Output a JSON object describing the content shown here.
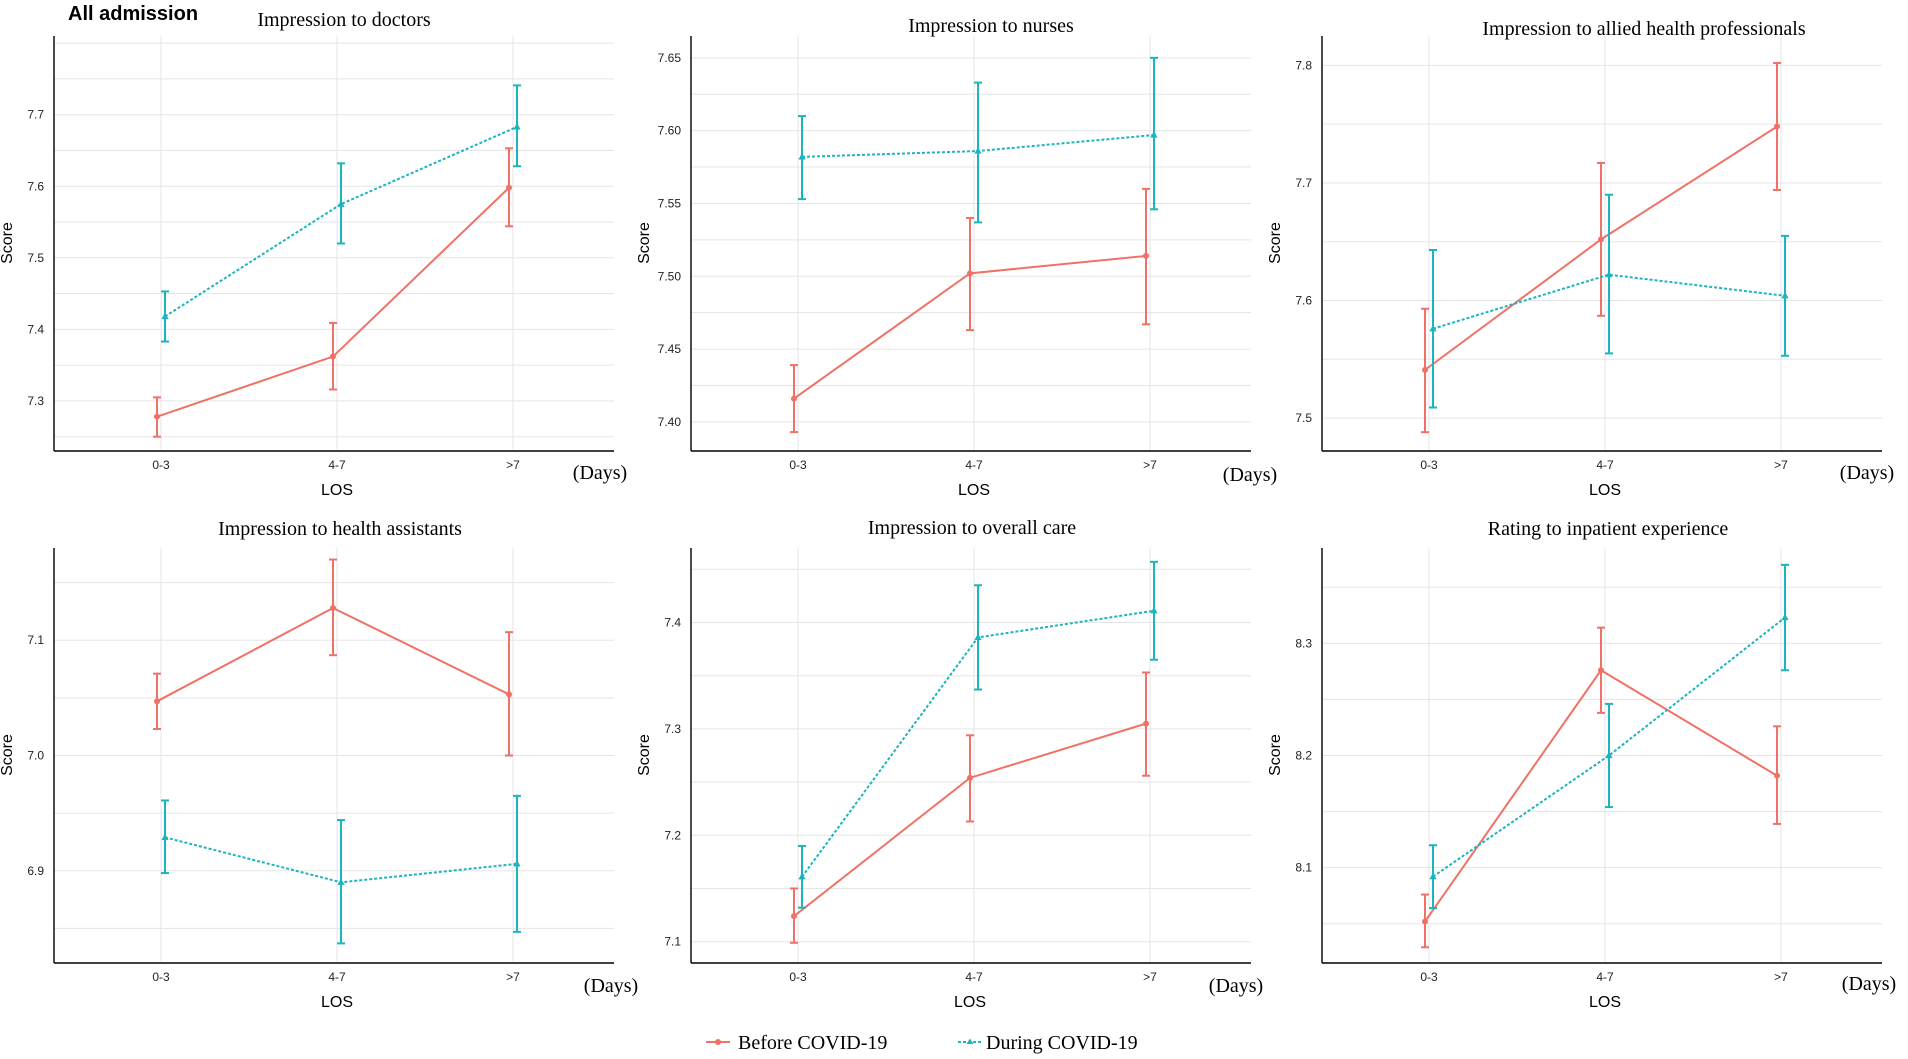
{
  "figure_title": "All admission",
  "legend": {
    "before_label": "Before COVID-19",
    "during_label": "During COVID-19"
  },
  "colors": {
    "before": "#F07166",
    "during": "#1BB5BD",
    "axis": "#000000",
    "grid": "#E5E5E5"
  },
  "chart_data": [
    {
      "type": "line",
      "title": "Impression to doctors",
      "xlabel": "LOS",
      "xunit": "(Days)",
      "ylabel": "Score",
      "categories": [
        "0-3",
        "4-7",
        ">7"
      ],
      "ylim": [
        7.23,
        7.81
      ],
      "yticks": [
        7.3,
        7.4,
        7.5,
        7.6,
        7.7
      ],
      "series": [
        {
          "name": "Before COVID-19",
          "values": [
            7.278,
            7.362,
            7.598
          ],
          "lower": [
            7.25,
            7.316,
            7.544
          ],
          "upper": [
            7.305,
            7.409,
            7.653
          ]
        },
        {
          "name": "During COVID-19",
          "values": [
            7.418,
            7.575,
            7.683
          ],
          "lower": [
            7.383,
            7.52,
            7.628
          ],
          "upper": [
            7.453,
            7.632,
            7.741
          ]
        }
      ]
    },
    {
      "type": "line",
      "title": "Impression to nurses",
      "xlabel": "LOS",
      "xunit": "(Days)",
      "ylabel": "Score",
      "categories": [
        "0-3",
        "4-7",
        ">7"
      ],
      "ylim": [
        7.38,
        7.665
      ],
      "yticks": [
        7.4,
        7.45,
        7.5,
        7.55,
        7.6,
        7.65
      ],
      "series": [
        {
          "name": "Before COVID-19",
          "values": [
            7.416,
            7.502,
            7.514
          ],
          "lower": [
            7.393,
            7.463,
            7.467
          ],
          "upper": [
            7.439,
            7.54,
            7.56
          ]
        },
        {
          "name": "During COVID-19",
          "values": [
            7.582,
            7.586,
            7.597
          ],
          "lower": [
            7.553,
            7.537,
            7.546
          ],
          "upper": [
            7.61,
            7.633,
            7.65
          ]
        }
      ]
    },
    {
      "type": "line",
      "title": "Impression to allied health professionals",
      "xlabel": "LOS",
      "xunit": "(Days)",
      "ylabel": "Score",
      "categories": [
        "0-3",
        "4-7",
        ">7"
      ],
      "ylim": [
        7.472,
        7.825
      ],
      "yticks": [
        7.5,
        7.6,
        7.7,
        7.8
      ],
      "series": [
        {
          "name": "Before COVID-19",
          "values": [
            7.541,
            7.652,
            7.748
          ],
          "lower": [
            7.488,
            7.587,
            7.694
          ],
          "upper": [
            7.593,
            7.717,
            7.802
          ]
        },
        {
          "name": "During COVID-19",
          "values": [
            7.576,
            7.622,
            7.604
          ],
          "lower": [
            7.509,
            7.555,
            7.553
          ],
          "upper": [
            7.643,
            7.69,
            7.655
          ]
        }
      ]
    },
    {
      "type": "line",
      "title": "Impression to health assistants",
      "xlabel": "LOS",
      "xunit": "(Days)",
      "ylabel": "Score",
      "categories": [
        "0-3",
        "4-7",
        ">7"
      ],
      "ylim": [
        6.82,
        7.18
      ],
      "yticks": [
        6.9,
        7.0,
        7.1
      ],
      "series": [
        {
          "name": "Before COVID-19",
          "values": [
            7.047,
            7.128,
            7.053
          ],
          "lower": [
            7.023,
            7.087,
            7.0
          ],
          "upper": [
            7.071,
            7.17,
            7.107
          ]
        },
        {
          "name": "During COVID-19",
          "values": [
            6.929,
            6.89,
            6.906
          ],
          "lower": [
            6.898,
            6.837,
            6.847
          ],
          "upper": [
            6.961,
            6.944,
            6.965
          ]
        }
      ]
    },
    {
      "type": "line",
      "title": "Impression to overall care",
      "xlabel": "LOS",
      "xunit": "(Days)",
      "ylabel": "Score",
      "categories": [
        "0-3",
        "4-7",
        ">7"
      ],
      "ylim": [
        7.08,
        7.47
      ],
      "yticks": [
        7.1,
        7.2,
        7.3,
        7.4
      ],
      "series": [
        {
          "name": "Before COVID-19",
          "values": [
            7.124,
            7.254,
            7.305
          ],
          "lower": [
            7.099,
            7.213,
            7.256
          ],
          "upper": [
            7.15,
            7.294,
            7.353
          ]
        },
        {
          "name": "During COVID-19",
          "values": [
            7.161,
            7.386,
            7.411
          ],
          "lower": [
            7.132,
            7.337,
            7.365
          ],
          "upper": [
            7.19,
            7.435,
            7.457
          ]
        }
      ]
    },
    {
      "type": "line",
      "title": "Rating to inpatient experience",
      "xlabel": "LOS",
      "xunit": "(Days)",
      "ylabel": "Score",
      "categories": [
        "0-3",
        "4-7",
        ">7"
      ],
      "ylim": [
        8.015,
        8.385
      ],
      "yticks": [
        8.1,
        8.2,
        8.3
      ],
      "series": [
        {
          "name": "Before COVID-19",
          "values": [
            8.052,
            8.276,
            8.182
          ],
          "lower": [
            8.029,
            8.238,
            8.139
          ],
          "upper": [
            8.076,
            8.314,
            8.226
          ]
        },
        {
          "name": "During COVID-19",
          "values": [
            8.092,
            8.2,
            8.323
          ],
          "lower": [
            8.064,
            8.154,
            8.276
          ],
          "upper": [
            8.12,
            8.246,
            8.37
          ]
        }
      ]
    }
  ]
}
